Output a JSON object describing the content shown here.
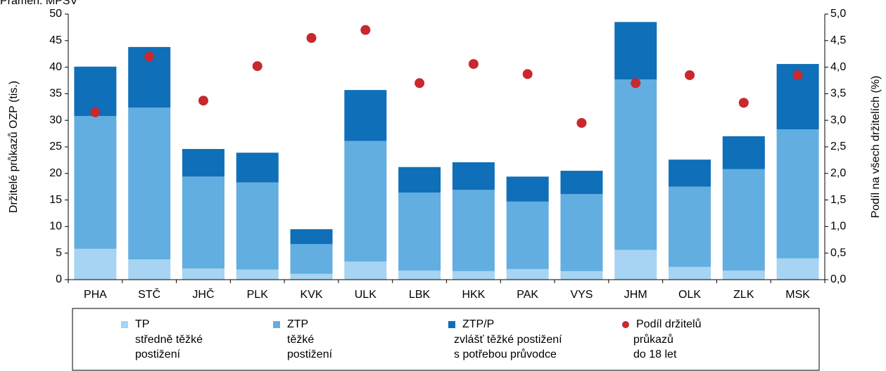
{
  "chart_data": {
    "type": "stacked_bar_dot",
    "source": "Pramen: MPSV",
    "y_label": "Držitelé průkazů OZP (tis.)",
    "y2_label": "Podíl na všech držitelích (%)",
    "categories": [
      "PHA",
      "STČ",
      "JHČ",
      "PLK",
      "KVK",
      "ULK",
      "LBK",
      "HKK",
      "PAK",
      "VYS",
      "JHM",
      "OLK",
      "ZLK",
      "MSK"
    ],
    "series": [
      {
        "name": "TP",
        "description": [
          "středně těžké",
          "postižení"
        ],
        "color": "#a6d4f2",
        "values": [
          5.8,
          3.8,
          2.1,
          1.9,
          1.1,
          3.4,
          1.7,
          1.6,
          2.0,
          1.6,
          5.6,
          2.4,
          1.7,
          4.0
        ]
      },
      {
        "name": "ZTP",
        "description": [
          "těžké",
          "postižení"
        ],
        "color": "#62aee0",
        "values": [
          25.0,
          28.6,
          17.3,
          16.4,
          5.6,
          22.7,
          14.7,
          15.3,
          12.7,
          14.5,
          32.1,
          15.1,
          19.1,
          24.3
        ]
      },
      {
        "name": "ZTP/P",
        "description": [
          "zvlášť těžké postižení",
          "s potřebou průvodce"
        ],
        "color": "#0f6fb8",
        "values": [
          9.3,
          11.4,
          5.2,
          5.6,
          2.8,
          9.6,
          4.8,
          5.2,
          4.7,
          4.4,
          10.8,
          5.1,
          6.2,
          12.3
        ]
      },
      {
        "name": "Podíl držitelů",
        "description": [
          "průkazů",
          "do 18 let"
        ],
        "color": "#c8282e",
        "axis": "y2",
        "values": [
          3.15,
          4.2,
          3.37,
          4.02,
          4.55,
          4.7,
          3.7,
          4.06,
          3.87,
          2.95,
          3.7,
          3.85,
          3.33,
          3.85
        ]
      }
    ],
    "ylim": [
      0,
      50
    ],
    "yticks": [
      0,
      5,
      10,
      15,
      20,
      25,
      30,
      35,
      40,
      45,
      50
    ],
    "y2lim": [
      0,
      5
    ],
    "y2ticks": [
      {
        "value": 0,
        "label": "0,0"
      },
      {
        "value": 0.5,
        "label": "0,5"
      },
      {
        "value": 1,
        "label": "1,0"
      },
      {
        "value": 1.5,
        "label": "1,5"
      },
      {
        "value": 2,
        "label": "2,0"
      },
      {
        "value": 2.5,
        "label": "2,5"
      },
      {
        "value": 3,
        "label": "3,0"
      },
      {
        "value": 3.5,
        "label": "3,5"
      },
      {
        "value": 4,
        "label": "4,0"
      },
      {
        "value": 4.5,
        "label": "4,5"
      },
      {
        "value": 5,
        "label": "5,0"
      }
    ]
  }
}
